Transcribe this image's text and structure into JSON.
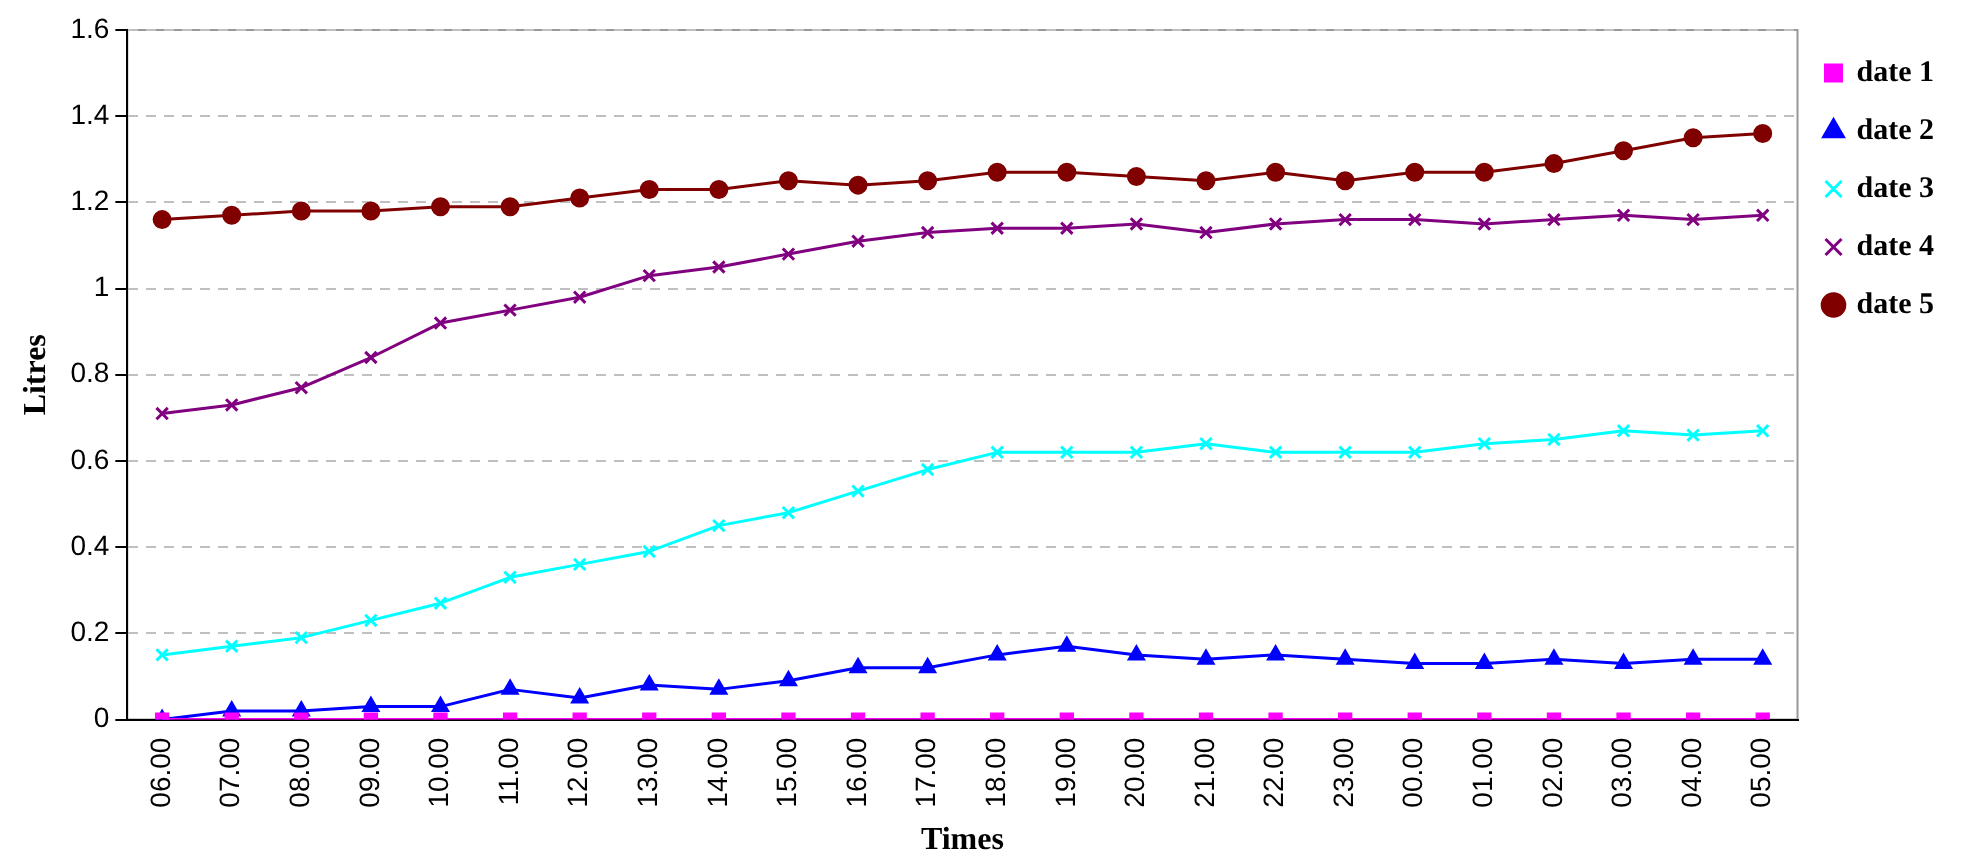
{
  "chart_data": {
    "type": "line",
    "xlabel": "Times",
    "ylabel": "Litres",
    "categories": [
      "06.00",
      "07.00",
      "08.00",
      "09.00",
      "10.00",
      "11.00",
      "12.00",
      "13.00",
      "14.00",
      "15.00",
      "16.00",
      "17.00",
      "18.00",
      "19.00",
      "20.00",
      "21.00",
      "22.00",
      "23.00",
      "00.00",
      "01.00",
      "02.00",
      "03.00",
      "04.00",
      "05.00"
    ],
    "series": [
      {
        "name": "date 1",
        "color": "#ff00ff",
        "marker": "square",
        "values": [
          0,
          0,
          0,
          0,
          0,
          0,
          0,
          0,
          0,
          0,
          0,
          0,
          0,
          0,
          0,
          0,
          0,
          0,
          0,
          0,
          0,
          0,
          0,
          0
        ]
      },
      {
        "name": "date 2",
        "color": "#0000ff",
        "marker": "triangle",
        "values": [
          0,
          0.02,
          0.02,
          0.03,
          0.03,
          0.07,
          0.05,
          0.08,
          0.07,
          0.09,
          0.12,
          0.12,
          0.15,
          0.17,
          0.15,
          0.14,
          0.15,
          0.14,
          0.13,
          0.13,
          0.14,
          0.13,
          0.14,
          0.14
        ]
      },
      {
        "name": "date 3",
        "color": "#00ffff",
        "marker": "cross",
        "values": [
          0.15,
          0.17,
          0.19,
          0.23,
          0.27,
          0.33,
          0.36,
          0.39,
          0.45,
          0.48,
          0.53,
          0.58,
          0.62,
          0.62,
          0.62,
          0.64,
          0.62,
          0.62,
          0.62,
          0.64,
          0.65,
          0.67,
          0.66,
          0.67
        ]
      },
      {
        "name": "date 4",
        "color": "#800080",
        "marker": "cross",
        "values": [
          0.71,
          0.73,
          0.77,
          0.84,
          0.92,
          0.95,
          0.98,
          1.03,
          1.05,
          1.08,
          1.11,
          1.13,
          1.14,
          1.14,
          1.15,
          1.13,
          1.15,
          1.16,
          1.16,
          1.15,
          1.16,
          1.17,
          1.16,
          1.17
        ]
      },
      {
        "name": "date 5",
        "color": "#800000",
        "marker": "circle",
        "values": [
          1.16,
          1.17,
          1.18,
          1.18,
          1.19,
          1.19,
          1.21,
          1.23,
          1.23,
          1.25,
          1.24,
          1.25,
          1.27,
          1.27,
          1.26,
          1.25,
          1.27,
          1.25,
          1.27,
          1.27,
          1.29,
          1.32,
          1.35,
          1.36
        ]
      }
    ],
    "ylim": [
      0,
      1.6
    ],
    "yticks": [
      0,
      0.2,
      0.4,
      0.6,
      0.8,
      1,
      1.2,
      1.4,
      1.6
    ],
    "grid": "y",
    "legend": "right"
  }
}
